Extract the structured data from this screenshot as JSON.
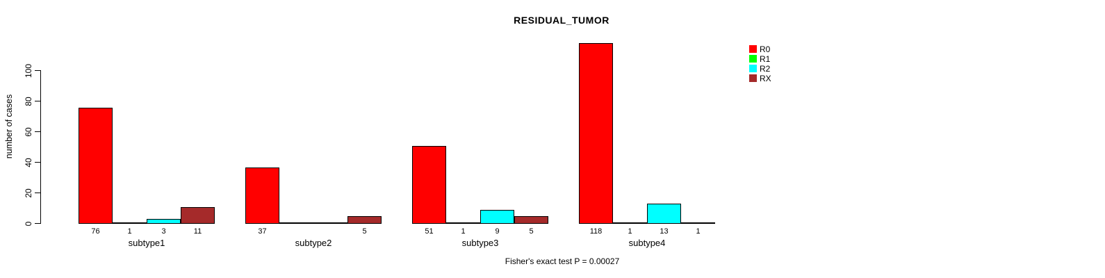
{
  "title": "RESIDUAL_TUMOR",
  "caption": "Fisher's exact test P = 0.00027",
  "chart_data": {
    "type": "bar",
    "title": "RESIDUAL_TUMOR",
    "xlabel": "",
    "ylabel": "number of cases",
    "categories": [
      "subtype1",
      "subtype2",
      "subtype3",
      "subtype4"
    ],
    "series": [
      {
        "name": "R0",
        "color": "#FF0000",
        "values": [
          76,
          37,
          51,
          118
        ]
      },
      {
        "name": "R1",
        "color": "#00FF00",
        "values": [
          1,
          0,
          1,
          1
        ]
      },
      {
        "name": "R2",
        "color": "#00FFFF",
        "values": [
          3,
          0,
          9,
          13
        ]
      },
      {
        "name": "RX",
        "color": "#A52A2A",
        "values": [
          11,
          5,
          5,
          1
        ]
      }
    ],
    "yticks": [
      0,
      20,
      40,
      60,
      80,
      100
    ],
    "ylim": [
      0,
      120
    ],
    "grid": false,
    "legend_position": "right",
    "bar_value_labels": "shown under each bar, omitted when value is 0",
    "annotation": "Fisher's exact test P = 0.00027"
  }
}
